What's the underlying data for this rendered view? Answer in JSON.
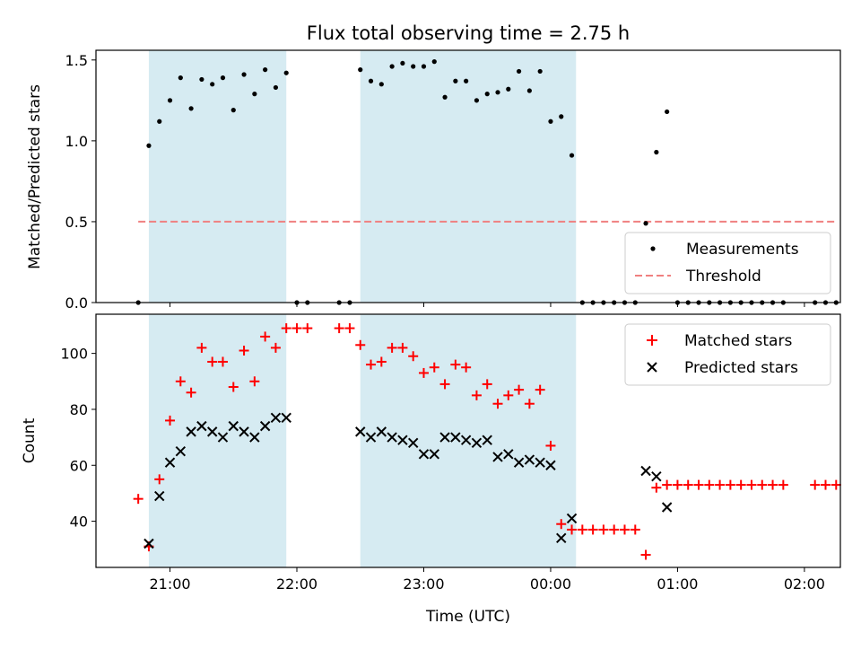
{
  "chart_data": {
    "title": "Flux total observing time = 2.75 h",
    "shaded_intervals": [
      [
        "20:50",
        "21:55"
      ],
      [
        "22:30",
        "00:12"
      ]
    ],
    "shade_color": "#add8e6",
    "xlim": [
      "20:25",
      "02:17"
    ],
    "xticks": [
      "21:00",
      "22:00",
      "23:00",
      "00:00",
      "01:00",
      "02:00"
    ],
    "xlabel": "Time (UTC)",
    "panels": [
      {
        "type": "scatter",
        "ylabel": "Matched/Predicted stars",
        "ylim": [
          0,
          1.56
        ],
        "yticks": [
          "0.0",
          "0.5",
          "1.0",
          "1.5"
        ],
        "legend_position": "lower-right",
        "series": [
          {
            "name": "Measurements",
            "marker": "dot",
            "color": "#000000",
            "points": [
              [
                "20:45",
                0.0
              ],
              [
                "20:50",
                0.97
              ],
              [
                "20:55",
                1.12
              ],
              [
                "21:00",
                1.25
              ],
              [
                "21:05",
                1.39
              ],
              [
                "21:10",
                1.2
              ],
              [
                "21:15",
                1.38
              ],
              [
                "21:20",
                1.35
              ],
              [
                "21:25",
                1.39
              ],
              [
                "21:30",
                1.19
              ],
              [
                "21:35",
                1.41
              ],
              [
                "21:40",
                1.29
              ],
              [
                "21:45",
                1.44
              ],
              [
                "21:50",
                1.33
              ],
              [
                "21:55",
                1.42
              ],
              [
                "22:00",
                0.0
              ],
              [
                "22:05",
                0.0
              ],
              [
                "22:20",
                0.0
              ],
              [
                "22:25",
                0.0
              ],
              [
                "22:30",
                1.44
              ],
              [
                "22:35",
                1.37
              ],
              [
                "22:40",
                1.35
              ],
              [
                "22:45",
                1.46
              ],
              [
                "22:50",
                1.48
              ],
              [
                "22:55",
                1.46
              ],
              [
                "23:00",
                1.46
              ],
              [
                "23:05",
                1.49
              ],
              [
                "23:10",
                1.27
              ],
              [
                "23:15",
                1.37
              ],
              [
                "23:20",
                1.37
              ],
              [
                "23:25",
                1.25
              ],
              [
                "23:30",
                1.29
              ],
              [
                "23:35",
                1.3
              ],
              [
                "23:40",
                1.32
              ],
              [
                "23:45",
                1.43
              ],
              [
                "23:50",
                1.31
              ],
              [
                "23:55",
                1.43
              ],
              [
                "00:00",
                1.12
              ],
              [
                "00:05",
                1.15
              ],
              [
                "00:10",
                0.91
              ],
              [
                "00:15",
                0.0
              ],
              [
                "00:20",
                0.0
              ],
              [
                "00:25",
                0.0
              ],
              [
                "00:30",
                0.0
              ],
              [
                "00:35",
                0.0
              ],
              [
                "00:40",
                0.0
              ],
              [
                "00:45",
                0.49
              ],
              [
                "00:50",
                0.93
              ],
              [
                "00:55",
                1.18
              ],
              [
                "01:00",
                0.0
              ],
              [
                "01:05",
                0.0
              ],
              [
                "01:10",
                0.0
              ],
              [
                "01:15",
                0.0
              ],
              [
                "01:20",
                0.0
              ],
              [
                "01:25",
                0.0
              ],
              [
                "01:30",
                0.0
              ],
              [
                "01:35",
                0.0
              ],
              [
                "01:40",
                0.0
              ],
              [
                "01:45",
                0.0
              ],
              [
                "01:50",
                0.0
              ],
              [
                "02:05",
                0.0
              ],
              [
                "02:10",
                0.0
              ],
              [
                "02:15",
                0.0
              ]
            ]
          },
          {
            "name": "Threshold",
            "kind": "dashed-line",
            "color": "#f08080",
            "y": 0.5,
            "x_range": [
              "20:45",
              "02:15"
            ]
          }
        ]
      },
      {
        "type": "scatter",
        "ylabel": "Count",
        "ylim": [
          23.5,
          114
        ],
        "yticks": [
          "40",
          "60",
          "80",
          "100"
        ],
        "legend_position": "upper-right",
        "series": [
          {
            "name": "Matched stars",
            "marker": "plus",
            "color": "#ff0000",
            "points": [
              [
                "20:45",
                48
              ],
              [
                "20:50",
                31
              ],
              [
                "20:55",
                55
              ],
              [
                "21:00",
                76
              ],
              [
                "21:05",
                90
              ],
              [
                "21:10",
                86
              ],
              [
                "21:15",
                102
              ],
              [
                "21:20",
                97
              ],
              [
                "21:25",
                97
              ],
              [
                "21:30",
                88
              ],
              [
                "21:35",
                101
              ],
              [
                "21:40",
                90
              ],
              [
                "21:45",
                106
              ],
              [
                "21:50",
                102
              ],
              [
                "21:55",
                109
              ],
              [
                "22:00",
                109
              ],
              [
                "22:05",
                109
              ],
              [
                "22:20",
                109
              ],
              [
                "22:25",
                109
              ],
              [
                "22:30",
                103
              ],
              [
                "22:35",
                96
              ],
              [
                "22:40",
                97
              ],
              [
                "22:45",
                102
              ],
              [
                "22:50",
                102
              ],
              [
                "22:55",
                99
              ],
              [
                "23:00",
                93
              ],
              [
                "23:05",
                95
              ],
              [
                "23:10",
                89
              ],
              [
                "23:15",
                96
              ],
              [
                "23:20",
                95
              ],
              [
                "23:25",
                85
              ],
              [
                "23:30",
                89
              ],
              [
                "23:35",
                82
              ],
              [
                "23:40",
                85
              ],
              [
                "23:45",
                87
              ],
              [
                "23:50",
                82
              ],
              [
                "23:55",
                87
              ],
              [
                "00:00",
                67
              ],
              [
                "00:05",
                39
              ],
              [
                "00:10",
                37
              ],
              [
                "00:15",
                37
              ],
              [
                "00:20",
                37
              ],
              [
                "00:25",
                37
              ],
              [
                "00:30",
                37
              ],
              [
                "00:35",
                37
              ],
              [
                "00:40",
                37
              ],
              [
                "00:45",
                28
              ],
              [
                "00:50",
                52
              ],
              [
                "00:55",
                53
              ],
              [
                "01:00",
                53
              ],
              [
                "01:05",
                53
              ],
              [
                "01:10",
                53
              ],
              [
                "01:15",
                53
              ],
              [
                "01:20",
                53
              ],
              [
                "01:25",
                53
              ],
              [
                "01:30",
                53
              ],
              [
                "01:35",
                53
              ],
              [
                "01:40",
                53
              ],
              [
                "01:45",
                53
              ],
              [
                "01:50",
                53
              ],
              [
                "02:05",
                53
              ],
              [
                "02:10",
                53
              ],
              [
                "02:15",
                53
              ]
            ]
          },
          {
            "name": "Predicted stars",
            "marker": "x",
            "color": "#000000",
            "points": [
              [
                "20:50",
                32
              ],
              [
                "20:55",
                49
              ],
              [
                "21:00",
                61
              ],
              [
                "21:05",
                65
              ],
              [
                "21:10",
                72
              ],
              [
                "21:15",
                74
              ],
              [
                "21:20",
                72
              ],
              [
                "21:25",
                70
              ],
              [
                "21:30",
                74
              ],
              [
                "21:35",
                72
              ],
              [
                "21:40",
                70
              ],
              [
                "21:45",
                74
              ],
              [
                "21:50",
                77
              ],
              [
                "21:55",
                77
              ],
              [
                "22:30",
                72
              ],
              [
                "22:35",
                70
              ],
              [
                "22:40",
                72
              ],
              [
                "22:45",
                70
              ],
              [
                "22:50",
                69
              ],
              [
                "22:55",
                68
              ],
              [
                "23:00",
                64
              ],
              [
                "23:05",
                64
              ],
              [
                "23:10",
                70
              ],
              [
                "23:15",
                70
              ],
              [
                "23:20",
                69
              ],
              [
                "23:25",
                68
              ],
              [
                "23:30",
                69
              ],
              [
                "23:35",
                63
              ],
              [
                "23:40",
                64
              ],
              [
                "23:45",
                61
              ],
              [
                "23:50",
                62
              ],
              [
                "23:55",
                61
              ],
              [
                "00:00",
                60
              ],
              [
                "00:05",
                34
              ],
              [
                "00:10",
                41
              ],
              [
                "00:45",
                58
              ],
              [
                "00:50",
                56
              ],
              [
                "00:55",
                45
              ]
            ]
          }
        ]
      }
    ]
  }
}
